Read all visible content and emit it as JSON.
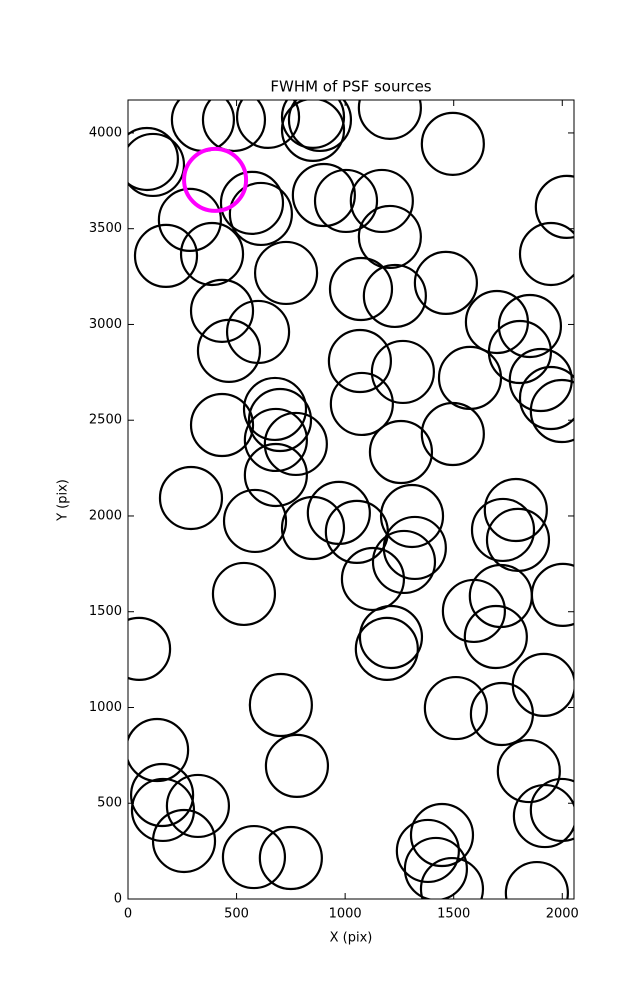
{
  "chart_data": {
    "type": "scatter",
    "title": "FWHM of PSF sources",
    "x_label": "X (pix)",
    "y_label": "Y (pix)",
    "xlim": [
      0,
      2054
    ],
    "ylim": [
      0,
      4172
    ],
    "xticks": [
      0,
      500,
      1000,
      1500,
      2000
    ],
    "yticks": [
      0,
      500,
      1000,
      1500,
      2000,
      2500,
      3000,
      3500,
      4000
    ],
    "marker": "open-circle",
    "series": [
      {
        "color": "#000000",
        "x": [
          87,
          115,
          345,
          488,
          645,
          852,
          884,
          852,
          1206,
          1496,
          571,
          612,
          902,
          1004,
          1169,
          1206,
          285,
          175,
          387,
          728,
          2021,
          1948,
          1464,
          1073,
          1229,
          433,
          599,
          465,
          1699,
          1851,
          1805,
          1068,
          1266,
          1575,
          1901,
          1948,
          1998,
          677,
          700,
          681,
          773,
          433,
          1077,
          1496,
          1257,
          681,
          290,
          585,
          852,
          971,
          1054,
          1308,
          1321,
          1271,
          1786,
          1727,
          1796,
          1128,
          534,
          1593,
          1717,
          2003,
          51,
          1211,
          1192,
          1694,
          704,
          1510,
          1722,
          1915,
          134,
          778,
          1846,
          157,
          161,
          322,
          1920,
          1998,
          258,
          580,
          750,
          1446,
          1381,
          1418,
          1492,
          1883
        ],
        "values": [
          3864,
          3833,
          4068,
          4068,
          4084,
          4084,
          4068,
          4016,
          4131,
          3943,
          3635,
          3577,
          3676,
          3645,
          3645,
          3457,
          3546,
          3358,
          3368,
          3269,
          3614,
          3368,
          3217,
          3185,
          3149,
          3071,
          2961,
          2862,
          3013,
          2992,
          2856,
          2809,
          2752,
          2721,
          2710,
          2616,
          2548,
          2559,
          2501,
          2397,
          2376,
          2475,
          2585,
          2428,
          2334,
          2214,
          2094,
          1974,
          1937,
          2016,
          1917,
          2000,
          1833,
          1760,
          2031,
          1927,
          1875,
          1671,
          1593,
          1504,
          1582,
          1588,
          1306,
          1368,
          1306,
          1368,
          1013,
          997,
          966,
          1118,
          778,
          695,
          668,
          543,
          465,
          486,
          433,
          465,
          303,
          219,
          214,
          334,
          251,
          157,
          52,
          31
        ]
      },
      {
        "color": "#ff00ff",
        "x": [
          401
        ],
        "values": [
          3755
        ]
      }
    ]
  }
}
